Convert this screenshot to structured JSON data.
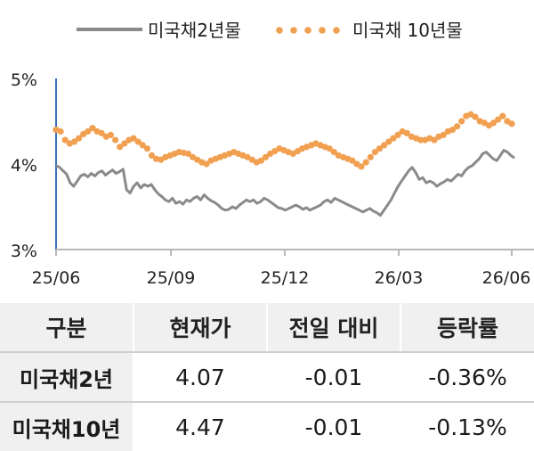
{
  "chart_data": {
    "type": "line",
    "series": [
      {
        "name": "미국채2년물",
        "style": "line",
        "color": "#8a8a8a",
        "values": [
          3.98,
          3.96,
          3.92,
          3.88,
          3.78,
          3.74,
          3.8,
          3.86,
          3.88,
          3.85,
          3.89,
          3.86,
          3.9,
          3.92,
          3.87,
          3.9,
          3.93,
          3.89,
          3.91,
          3.94,
          3.7,
          3.66,
          3.74,
          3.78,
          3.72,
          3.76,
          3.74,
          3.76,
          3.7,
          3.65,
          3.62,
          3.58,
          3.56,
          3.6,
          3.54,
          3.56,
          3.53,
          3.58,
          3.56,
          3.6,
          3.62,
          3.58,
          3.64,
          3.6,
          3.57,
          3.55,
          3.52,
          3.48,
          3.46,
          3.47,
          3.5,
          3.48,
          3.52,
          3.55,
          3.58,
          3.56,
          3.58,
          3.54,
          3.56,
          3.6,
          3.58,
          3.55,
          3.52,
          3.49,
          3.48,
          3.46,
          3.48,
          3.5,
          3.52,
          3.5,
          3.47,
          3.49,
          3.46,
          3.48,
          3.5,
          3.52,
          3.56,
          3.58,
          3.55,
          3.6,
          3.58,
          3.56,
          3.54,
          3.52,
          3.5,
          3.48,
          3.46,
          3.44,
          3.46,
          3.48,
          3.45,
          3.43,
          3.4,
          3.46,
          3.52,
          3.58,
          3.66,
          3.74,
          3.8,
          3.86,
          3.92,
          3.96,
          3.9,
          3.82,
          3.84,
          3.78,
          3.8,
          3.78,
          3.74,
          3.77,
          3.79,
          3.82,
          3.8,
          3.84,
          3.88,
          3.86,
          3.92,
          3.96,
          3.98,
          4.02,
          4.06,
          4.12,
          4.14,
          4.1,
          4.06,
          4.04,
          4.1,
          4.16,
          4.14,
          4.1,
          4.07
        ]
      },
      {
        "name": "미국채 10년물",
        "style": "dots",
        "color": "#f0a050",
        "values": [
          4.4,
          4.38,
          4.28,
          4.24,
          4.26,
          4.3,
          4.35,
          4.38,
          4.42,
          4.38,
          4.36,
          4.32,
          4.34,
          4.28,
          4.2,
          4.24,
          4.28,
          4.3,
          4.26,
          4.22,
          4.18,
          4.1,
          4.06,
          4.05,
          4.08,
          4.1,
          4.12,
          4.14,
          4.13,
          4.12,
          4.08,
          4.05,
          4.02,
          4.0,
          4.04,
          4.06,
          4.08,
          4.1,
          4.12,
          4.14,
          4.12,
          4.1,
          4.08,
          4.05,
          4.02,
          4.04,
          4.08,
          4.12,
          4.15,
          4.18,
          4.16,
          4.14,
          4.12,
          4.15,
          4.18,
          4.2,
          4.22,
          4.24,
          4.22,
          4.2,
          4.18,
          4.14,
          4.1,
          4.08,
          4.06,
          4.04,
          4.0,
          3.97,
          4.02,
          4.08,
          4.14,
          4.18,
          4.22,
          4.26,
          4.3,
          4.34,
          4.38,
          4.36,
          4.32,
          4.3,
          4.28,
          4.28,
          4.3,
          4.28,
          4.32,
          4.34,
          4.38,
          4.4,
          4.44,
          4.5,
          4.56,
          4.58,
          4.55,
          4.5,
          4.48,
          4.45,
          4.48,
          4.52,
          4.56,
          4.5,
          4.47
        ]
      }
    ],
    "y_ticks": [
      "3%",
      "4%",
      "5%"
    ],
    "y_tick_values": [
      3,
      4,
      5
    ],
    "ylim": [
      3,
      5
    ],
    "x_ticks": [
      "25/06",
      "25/09",
      "25/12",
      "26/03",
      "26/06"
    ],
    "grid": false,
    "legend_position": "top"
  },
  "table": {
    "headers": [
      "구분",
      "현재가",
      "전일 대비",
      "등락률"
    ],
    "rows": [
      [
        "미국채2년",
        "4.07",
        "-0.01",
        "-0.36%"
      ],
      [
        "미국채10년",
        "4.47",
        "-0.01",
        "-0.13%"
      ]
    ]
  }
}
